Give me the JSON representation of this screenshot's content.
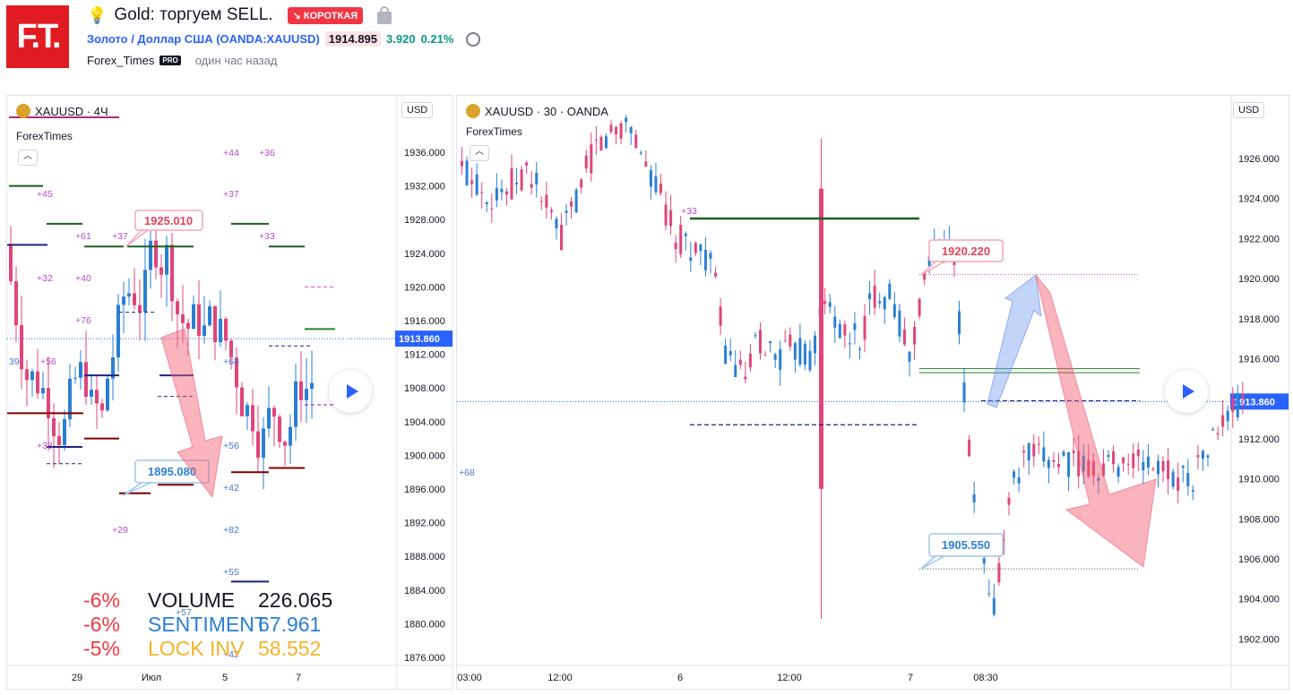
{
  "header": {
    "logo_text": "F.T.",
    "title": "Gold: торгуем SELL.",
    "badge": "↘ КОРОТКАЯ",
    "symbol_text": "Золото / Доллар США (OANDA:XAUUSD)",
    "price": "1914.895",
    "change": "3.920",
    "change_pct": "0.21%",
    "author": "Forex_Times",
    "author_badge": "PRO",
    "time_ago": "один час назад",
    "icons": [
      "bulb-icon",
      "lock-icon",
      "alarm-clock-icon"
    ]
  },
  "chart_left": {
    "symbol_title": "XAUUSD · 4Ч",
    "subtitle": "ForexTimes",
    "currency": "USD",
    "last_price": "1913.860",
    "price_ticks": [
      "1936.000",
      "1932.000",
      "1928.000",
      "1924.000",
      "1920.000",
      "1916.000",
      "1912.000",
      "1908.000",
      "1904.000",
      "1900.000",
      "1896.000",
      "1892.000",
      "1888.000",
      "1884.000",
      "1880.000",
      "1876.000"
    ],
    "time_ticks": [
      "29",
      "Июл",
      "5",
      "7"
    ],
    "callout_high": "1925.010",
    "callout_low": "1895.080",
    "level_labels": [
      "+45",
      "+61",
      "+37",
      "+32",
      "+40",
      "+76",
      "+56",
      "+38",
      "+29",
      "+44",
      "+36",
      "+37",
      "+33",
      "+68",
      "+56",
      "+42",
      "+82",
      "+55",
      "+57",
      "+42",
      "39",
      "+5"
    ],
    "stats": [
      {
        "pct": "-6%",
        "label": "VOLUME",
        "value": "226.065",
        "color": "#131722"
      },
      {
        "pct": "-6%",
        "label": "SENTIMENT",
        "value": "67.961",
        "color": "#2a7fd4"
      },
      {
        "pct": "-5%",
        "label": "LOCK INV",
        "value": "58.552",
        "color": "#f0b429"
      }
    ]
  },
  "chart_right": {
    "symbol_title": "XAUUSD · 30 · OANDA",
    "subtitle": "ForexTimes",
    "currency": "USD",
    "last_price": "1913.860",
    "price_ticks": [
      "1926.000",
      "1924.000",
      "1922.000",
      "1920.000",
      "1918.000",
      "1916.000",
      "1914.000",
      "1912.000",
      "1910.000",
      "1908.000",
      "1906.000",
      "1904.000",
      "1902.000"
    ],
    "time_ticks": [
      "03:00",
      "12:00",
      "6",
      "12:00",
      "7",
      "08:30"
    ],
    "callout_high": "1920.220",
    "callout_low": "1905.550",
    "level_labels": [
      "+33",
      "+68"
    ]
  },
  "chart_data": [
    {
      "type": "candlestick",
      "title": "XAUUSD · 4Ч",
      "ylim": [
        1874,
        1942
      ],
      "annotations": [
        "1925.010",
        "1895.080"
      ],
      "last": 1913.86
    },
    {
      "type": "candlestick",
      "title": "XAUUSD · 30 · OANDA",
      "ylim": [
        1901,
        1928
      ],
      "annotations": [
        "1920.220",
        "1905.550"
      ],
      "last": 1913.86
    }
  ]
}
